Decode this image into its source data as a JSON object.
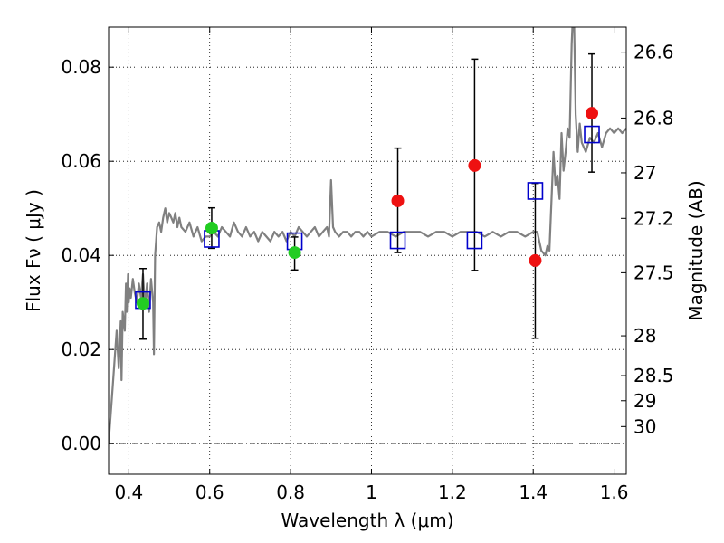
{
  "chart_data": {
    "type": "scatter",
    "title": "",
    "xlabel": "Wavelength  λ (μm)",
    "ylabel": "Flux  Fν  ( μJy )",
    "y2label": "Magnitude (AB)",
    "xlim": [
      0.35,
      1.63
    ],
    "ylim": [
      -0.0065,
      0.0885
    ],
    "grid": true,
    "x_ticks": [
      0.4,
      0.6,
      0.8,
      1.0,
      1.2,
      1.4,
      1.6
    ],
    "x_tick_labels": [
      "0.4",
      "0.6",
      "0.8",
      "1",
      "1.2",
      "1.4",
      "1.6"
    ],
    "y_ticks": [
      0.0,
      0.02,
      0.04,
      0.06,
      0.08
    ],
    "y_tick_labels": [
      "0.00",
      "0.02",
      "0.04",
      "0.06",
      "0.08"
    ],
    "mag_ticks": [
      {
        "mag": 26.6,
        "label": "26.6"
      },
      {
        "mag": 26.8,
        "label": "26.8"
      },
      {
        "mag": 27.0,
        "label": "27"
      },
      {
        "mag": 27.2,
        "label": "27.2"
      },
      {
        "mag": 27.5,
        "label": "27.5"
      },
      {
        "mag": 28.0,
        "label": "28"
      },
      {
        "mag": 28.5,
        "label": "28.5"
      },
      {
        "mag": 29.0,
        "label": "29"
      },
      {
        "mag": 30.0,
        "label": "30"
      }
    ],
    "zero_line": 0.0,
    "model_spectrum": {
      "color": "#808080",
      "x": [
        0.35,
        0.36,
        0.365,
        0.37,
        0.375,
        0.38,
        0.382,
        0.385,
        0.39,
        0.393,
        0.395,
        0.398,
        0.4,
        0.402,
        0.405,
        0.41,
        0.415,
        0.42,
        0.425,
        0.43,
        0.435,
        0.44,
        0.445,
        0.45,
        0.455,
        0.46,
        0.462,
        0.465,
        0.47,
        0.475,
        0.48,
        0.485,
        0.49,
        0.495,
        0.5,
        0.505,
        0.51,
        0.515,
        0.52,
        0.525,
        0.53,
        0.54,
        0.55,
        0.56,
        0.57,
        0.58,
        0.59,
        0.6,
        0.61,
        0.62,
        0.63,
        0.64,
        0.65,
        0.66,
        0.67,
        0.68,
        0.69,
        0.7,
        0.71,
        0.72,
        0.73,
        0.74,
        0.75,
        0.76,
        0.77,
        0.78,
        0.79,
        0.8,
        0.81,
        0.82,
        0.83,
        0.84,
        0.85,
        0.86,
        0.87,
        0.88,
        0.89,
        0.895,
        0.9,
        0.905,
        0.91,
        0.92,
        0.93,
        0.94,
        0.95,
        0.96,
        0.97,
        0.98,
        0.99,
        1.0,
        1.02,
        1.04,
        1.06,
        1.08,
        1.1,
        1.12,
        1.14,
        1.16,
        1.18,
        1.2,
        1.22,
        1.24,
        1.26,
        1.28,
        1.3,
        1.32,
        1.34,
        1.36,
        1.38,
        1.4,
        1.41,
        1.415,
        1.42,
        1.43,
        1.435,
        1.44,
        1.45,
        1.455,
        1.46,
        1.465,
        1.47,
        1.475,
        1.48,
        1.485,
        1.49,
        1.495,
        1.5,
        1.505,
        1.51,
        1.515,
        1.52,
        1.53,
        1.54,
        1.55,
        1.56,
        1.57,
        1.58,
        1.59,
        1.6,
        1.61,
        1.62,
        1.63
      ],
      "y": [
        0.0,
        0.012,
        0.018,
        0.024,
        0.016,
        0.026,
        0.0135,
        0.028,
        0.024,
        0.034,
        0.028,
        0.036,
        0.03,
        0.033,
        0.031,
        0.035,
        0.032,
        0.03,
        0.034,
        0.031,
        0.036,
        0.029,
        0.034,
        0.028,
        0.035,
        0.03,
        0.019,
        0.04,
        0.046,
        0.047,
        0.045,
        0.048,
        0.05,
        0.047,
        0.049,
        0.048,
        0.047,
        0.049,
        0.046,
        0.048,
        0.046,
        0.045,
        0.047,
        0.044,
        0.046,
        0.043,
        0.044,
        0.044,
        0.045,
        0.044,
        0.046,
        0.045,
        0.044,
        0.047,
        0.045,
        0.044,
        0.046,
        0.044,
        0.045,
        0.043,
        0.045,
        0.044,
        0.043,
        0.045,
        0.044,
        0.045,
        0.043,
        0.045,
        0.044,
        0.046,
        0.045,
        0.044,
        0.045,
        0.046,
        0.044,
        0.045,
        0.046,
        0.044,
        0.056,
        0.046,
        0.045,
        0.044,
        0.045,
        0.045,
        0.044,
        0.045,
        0.045,
        0.044,
        0.045,
        0.044,
        0.045,
        0.045,
        0.044,
        0.045,
        0.045,
        0.045,
        0.044,
        0.045,
        0.045,
        0.044,
        0.045,
        0.045,
        0.045,
        0.044,
        0.045,
        0.044,
        0.045,
        0.045,
        0.044,
        0.045,
        0.045,
        0.043,
        0.041,
        0.04,
        0.042,
        0.041,
        0.062,
        0.055,
        0.057,
        0.052,
        0.066,
        0.058,
        0.062,
        0.067,
        0.065,
        0.085,
        0.095,
        0.07,
        0.062,
        0.068,
        0.064,
        0.062,
        0.065,
        0.064,
        0.066,
        0.063,
        0.066,
        0.067,
        0.066,
        0.067,
        0.066,
        0.067
      ]
    },
    "series": [
      {
        "name": "",
        "marker": "open-square",
        "color": "#0000cc",
        "x": [
          0.435,
          0.605,
          0.81,
          1.065,
          1.255,
          1.405,
          1.545
        ],
        "y": [
          0.0305,
          0.0435,
          0.043,
          0.0432,
          0.0432,
          0.0537,
          0.0657
        ]
      },
      {
        "name": "",
        "marker": "filled-circle",
        "color": "#22cc22",
        "x": [
          0.435,
          0.605,
          0.81
        ],
        "y": [
          0.0298,
          0.0458,
          0.0406
        ],
        "yerr_low": [
          0.0076,
          0.0043,
          0.0037
        ],
        "yerr_high": [
          0.0074,
          0.0043,
          0.0033
        ]
      },
      {
        "name": "",
        "marker": "filled-circle",
        "color": "#ee1111",
        "x": [
          1.065,
          1.255,
          1.405,
          1.545
        ],
        "y": [
          0.0516,
          0.0591,
          0.0389,
          0.0702
        ],
        "yerr_low": [
          0.011,
          0.0223,
          0.0165,
          0.0125
        ],
        "yerr_high": [
          0.0112,
          0.0226,
          0.0164,
          0.0126
        ]
      }
    ]
  }
}
